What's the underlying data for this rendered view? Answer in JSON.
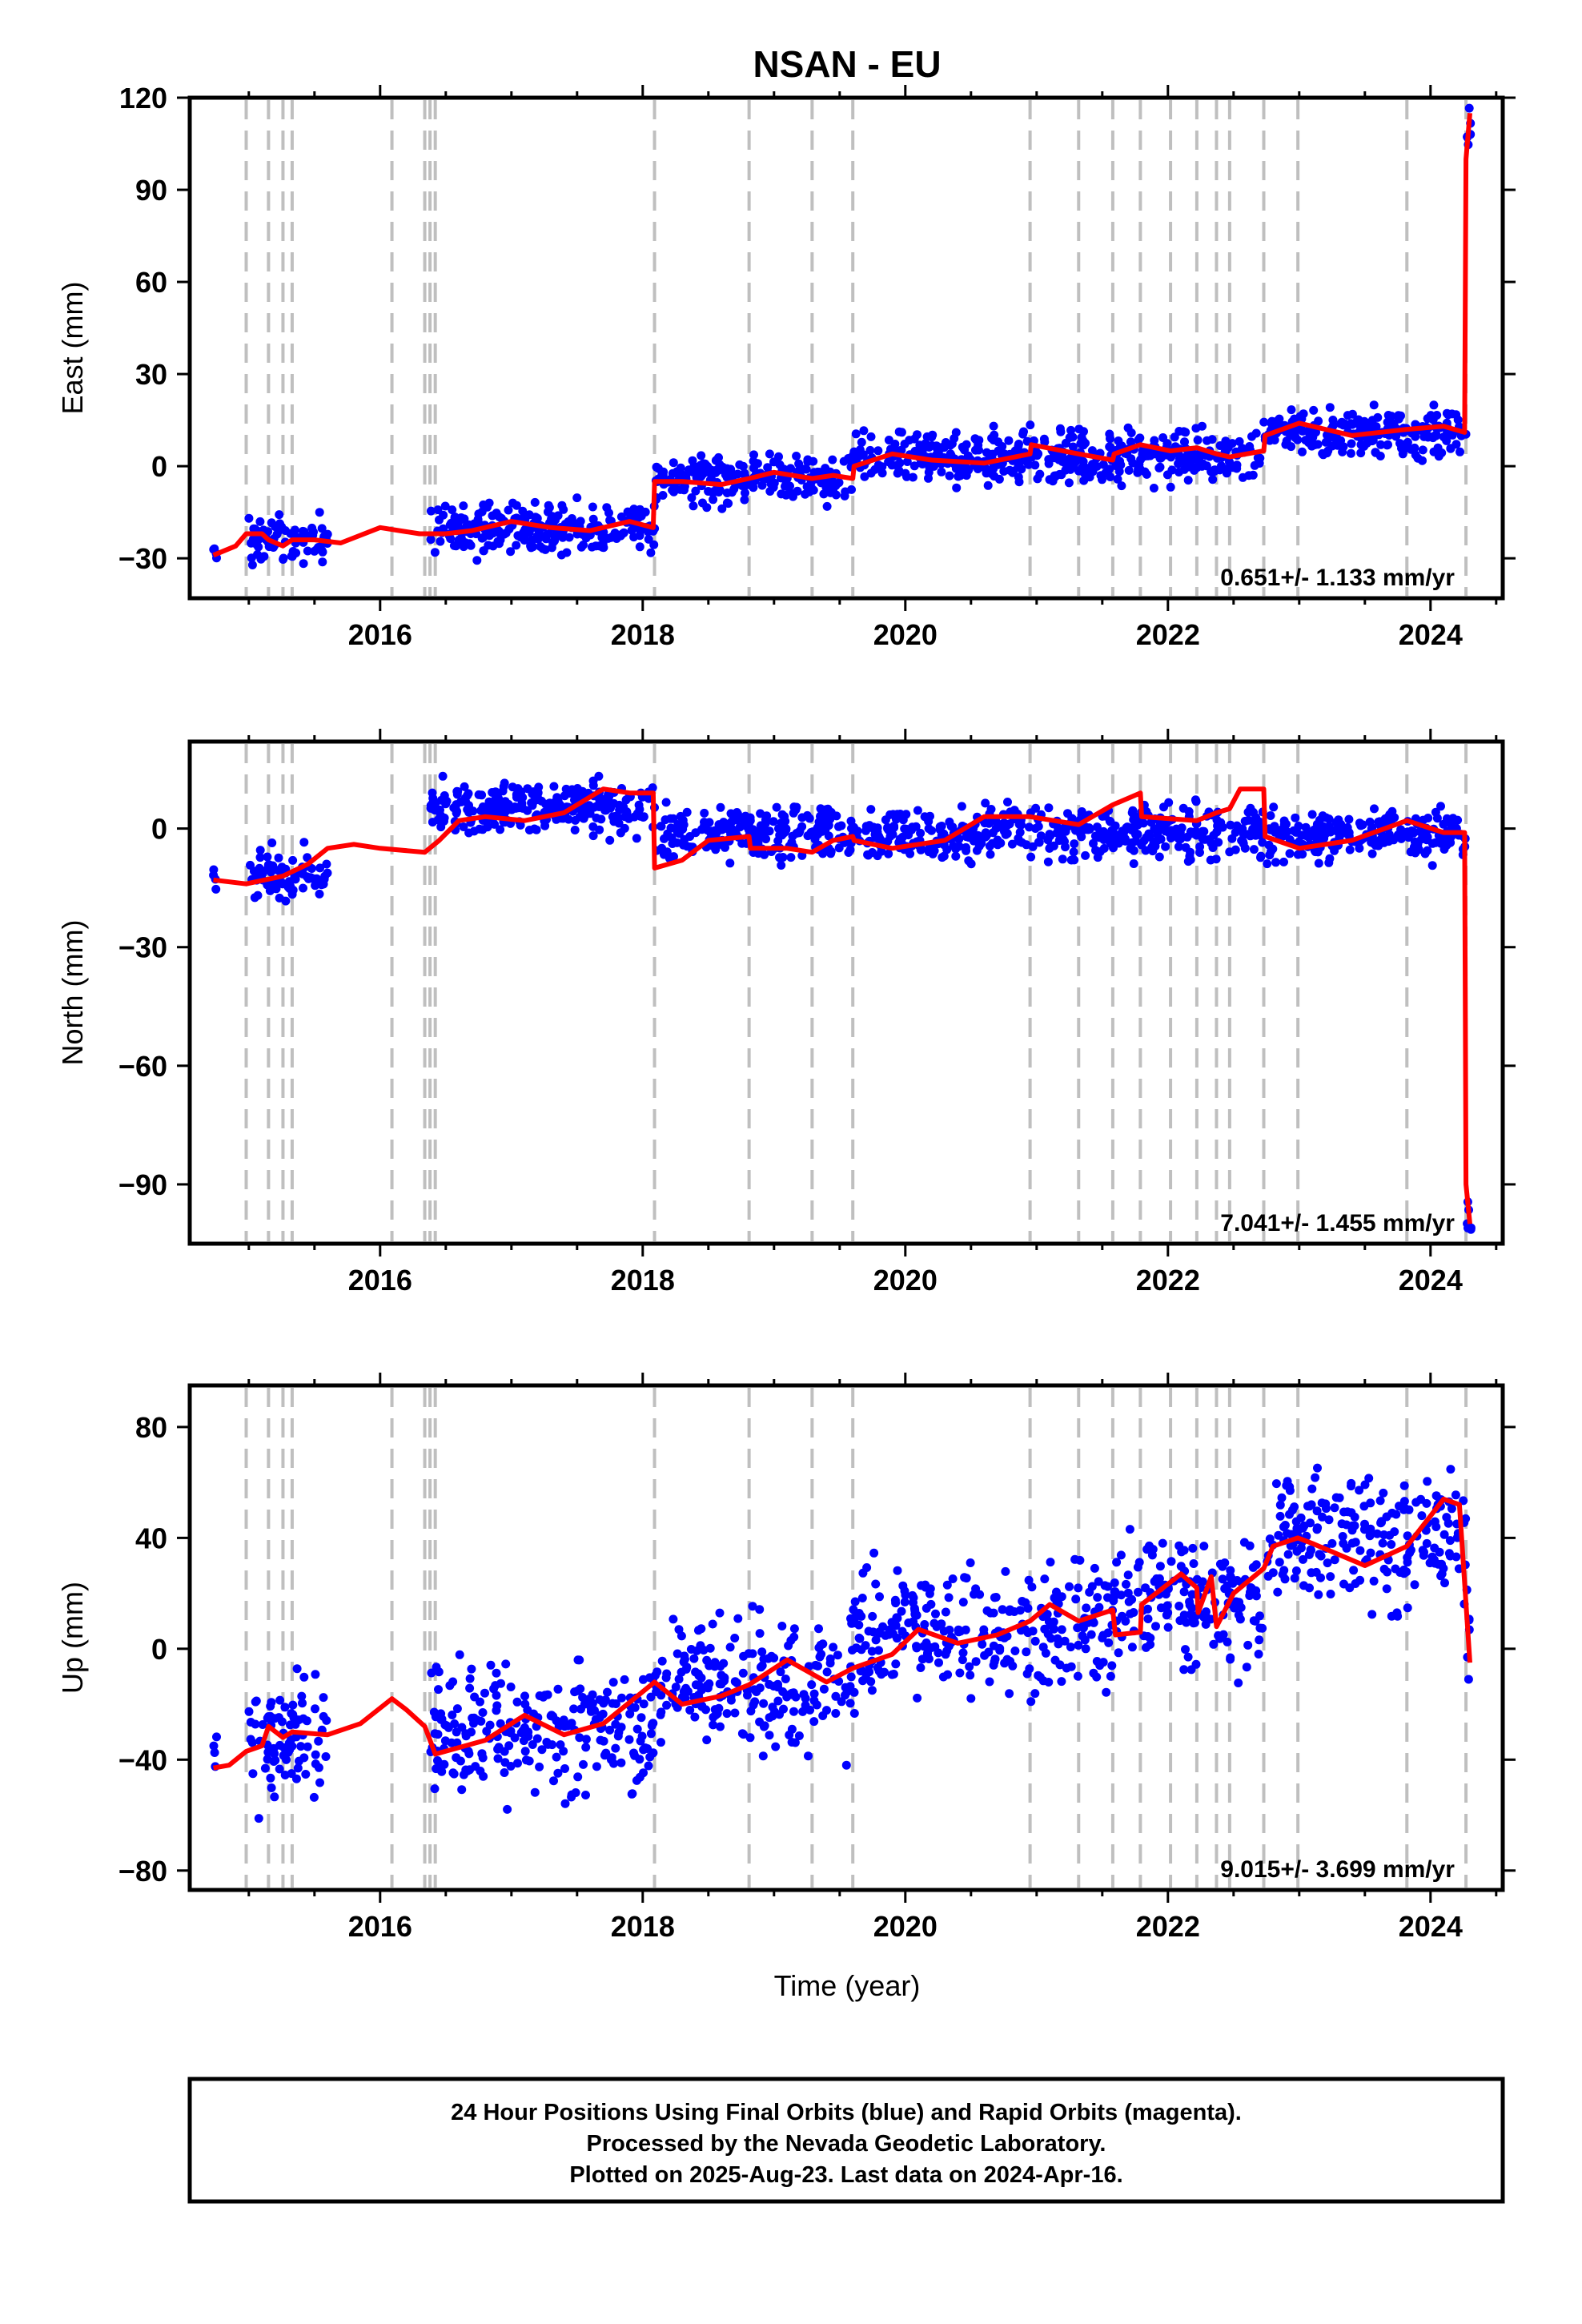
{
  "figure": {
    "title": "NSAN - EU",
    "xlabel": "Time (year)",
    "caption": [
      "24 Hour Positions Using Final Orbits (blue) and Rapid Orbits (magenta).",
      "Processed by the Nevada Geodetic Laboratory.",
      "Plotted on 2025-Aug-23. Last data on 2024-Apr-16."
    ],
    "colors": {
      "final_orbit_points": "#0000ff",
      "model_fit": "#ff0000",
      "step_lines": "#bfbfbf"
    }
  },
  "chart_data": [
    {
      "type": "scatter",
      "component": "East",
      "ylabel": "East (mm)",
      "xlim": [
        2014.55,
        2024.55
      ],
      "ylim": [
        -43,
        120
      ],
      "x_ticks": [
        2016,
        2018,
        2020,
        2022,
        2024
      ],
      "y_ticks": [
        -30,
        0,
        30,
        60,
        90,
        120
      ],
      "rate_label": "0.651+/- 1.133 mm/yr",
      "step_epochs": [
        2014.98,
        2015.15,
        2015.26,
        2015.33,
        2016.09,
        2016.34,
        2016.38,
        2016.42,
        2018.09,
        2018.81,
        2019.29,
        2019.6,
        2020.95,
        2021.32,
        2021.58,
        2021.79,
        2022.02,
        2022.22,
        2022.37,
        2022.47,
        2022.73,
        2022.99,
        2023.82,
        2024.27
      ],
      "fit_line": [
        [
          2014.73,
          -29
        ],
        [
          2014.9,
          -26
        ],
        [
          2014.98,
          -22
        ],
        [
          2015.1,
          -22
        ],
        [
          2015.15,
          -24
        ],
        [
          2015.26,
          -26
        ],
        [
          2015.33,
          -24
        ],
        [
          2015.5,
          -24
        ],
        [
          2015.7,
          -25
        ],
        [
          2016.0,
          -20
        ],
        [
          2016.3,
          -22
        ],
        [
          2016.5,
          -22
        ],
        [
          2016.7,
          -21
        ],
        [
          2017.0,
          -18
        ],
        [
          2017.3,
          -20
        ],
        [
          2017.6,
          -21
        ],
        [
          2017.9,
          -18
        ],
        [
          2018.08,
          -20
        ],
        [
          2018.09,
          -5
        ],
        [
          2018.3,
          -5
        ],
        [
          2018.6,
          -6
        ],
        [
          2018.81,
          -4
        ],
        [
          2019.0,
          -2
        ],
        [
          2019.29,
          -4
        ],
        [
          2019.45,
          -3
        ],
        [
          2019.6,
          -4
        ],
        [
          2019.61,
          0
        ],
        [
          2019.9,
          4
        ],
        [
          2020.2,
          2
        ],
        [
          2020.6,
          1
        ],
        [
          2020.95,
          4
        ],
        [
          2020.96,
          7
        ],
        [
          2021.32,
          4
        ],
        [
          2021.58,
          2
        ],
        [
          2021.59,
          4
        ],
        [
          2021.79,
          7
        ],
        [
          2022.02,
          5
        ],
        [
          2022.22,
          6
        ],
        [
          2022.37,
          4
        ],
        [
          2022.47,
          3
        ],
        [
          2022.73,
          5
        ],
        [
          2022.74,
          10
        ],
        [
          2023.0,
          14
        ],
        [
          2023.4,
          10
        ],
        [
          2023.82,
          12
        ],
        [
          2024.1,
          13
        ],
        [
          2024.26,
          11
        ],
        [
          2024.27,
          100
        ],
        [
          2024.3,
          115
        ]
      ],
      "point_bands": [
        {
          "x": [
            2014.73,
            2014.76
          ],
          "mean": -28,
          "spread": 1.5
        },
        {
          "x": [
            2015.0,
            2015.6
          ],
          "mean": -24,
          "spread": 5
        },
        {
          "x": [
            2016.38,
            2018.09
          ],
          "mean": -20,
          "spread": 5
        },
        {
          "x": [
            2018.09,
            2019.6
          ],
          "mean": -4,
          "spread": 5
        },
        {
          "x": [
            2019.6,
            2022.73
          ],
          "mean": 3,
          "spread": 5
        },
        {
          "x": [
            2022.73,
            2024.27
          ],
          "mean": 11,
          "spread": 5
        },
        {
          "x": [
            2024.27,
            2024.31
          ],
          "mean": 110,
          "spread": 6
        }
      ]
    },
    {
      "type": "scatter",
      "component": "North",
      "ylabel": "North (mm)",
      "xlim": [
        2014.55,
        2024.55
      ],
      "ylim": [
        -105,
        22
      ],
      "x_ticks": [
        2016,
        2018,
        2020,
        2022,
        2024
      ],
      "y_ticks": [
        -90,
        -60,
        -30,
        0
      ],
      "rate_label": "7.041+/- 1.455 mm/yr",
      "step_epochs": [
        2014.98,
        2015.15,
        2015.26,
        2015.33,
        2016.09,
        2016.34,
        2016.38,
        2016.42,
        2018.09,
        2018.81,
        2019.29,
        2019.6,
        2020.95,
        2021.32,
        2021.58,
        2021.79,
        2022.02,
        2022.22,
        2022.37,
        2022.47,
        2022.73,
        2022.99,
        2023.82,
        2024.27
      ],
      "fit_line": [
        [
          2014.73,
          -13
        ],
        [
          2014.98,
          -14
        ],
        [
          2015.26,
          -12
        ],
        [
          2015.45,
          -9
        ],
        [
          2015.6,
          -5
        ],
        [
          2015.8,
          -4
        ],
        [
          2016.0,
          -5
        ],
        [
          2016.34,
          -6
        ],
        [
          2016.45,
          -3
        ],
        [
          2016.6,
          2
        ],
        [
          2016.8,
          3
        ],
        [
          2017.1,
          2
        ],
        [
          2017.4,
          4
        ],
        [
          2017.7,
          10
        ],
        [
          2017.9,
          9
        ],
        [
          2018.08,
          9
        ],
        [
          2018.09,
          -10
        ],
        [
          2018.3,
          -8
        ],
        [
          2018.5,
          -3
        ],
        [
          2018.81,
          -2
        ],
        [
          2018.82,
          -5
        ],
        [
          2019.1,
          -5
        ],
        [
          2019.29,
          -6
        ],
        [
          2019.45,
          -3
        ],
        [
          2019.6,
          -2
        ],
        [
          2019.61,
          -3
        ],
        [
          2019.9,
          -5
        ],
        [
          2020.3,
          -3
        ],
        [
          2020.6,
          3
        ],
        [
          2020.95,
          3
        ],
        [
          2021.32,
          1
        ],
        [
          2021.58,
          6
        ],
        [
          2021.79,
          9
        ],
        [
          2021.8,
          3
        ],
        [
          2022.22,
          2
        ],
        [
          2022.37,
          4
        ],
        [
          2022.47,
          5
        ],
        [
          2022.55,
          10
        ],
        [
          2022.73,
          10
        ],
        [
          2022.74,
          -2
        ],
        [
          2023.0,
          -5
        ],
        [
          2023.4,
          -3
        ],
        [
          2023.82,
          2
        ],
        [
          2024.1,
          -1
        ],
        [
          2024.26,
          -1
        ],
        [
          2024.27,
          -90
        ],
        [
          2024.3,
          -100
        ]
      ],
      "point_bands": [
        {
          "x": [
            2014.73,
            2014.76
          ],
          "mean": -12,
          "spread": 2
        },
        {
          "x": [
            2015.0,
            2015.6
          ],
          "mean": -11,
          "spread": 4
        },
        {
          "x": [
            2016.38,
            2018.09
          ],
          "mean": 5,
          "spread": 4
        },
        {
          "x": [
            2018.09,
            2022.73
          ],
          "mean": -1,
          "spread": 4
        },
        {
          "x": [
            2022.73,
            2024.27
          ],
          "mean": -2,
          "spread": 4
        },
        {
          "x": [
            2024.27,
            2024.31
          ],
          "mean": -98,
          "spread": 4
        }
      ]
    },
    {
      "type": "scatter",
      "component": "Up",
      "ylabel": "Up (mm)",
      "xlim": [
        2014.55,
        2024.55
      ],
      "ylim": [
        -87,
        95
      ],
      "x_ticks": [
        2016,
        2018,
        2020,
        2022,
        2024
      ],
      "y_ticks": [
        -80,
        -40,
        0,
        40,
        80
      ],
      "rate_label": "9.015+/- 3.699 mm/yr",
      "step_epochs": [
        2014.98,
        2015.15,
        2015.26,
        2015.33,
        2016.09,
        2016.34,
        2016.38,
        2016.42,
        2018.09,
        2018.81,
        2019.29,
        2019.6,
        2020.95,
        2021.32,
        2021.58,
        2021.79,
        2022.02,
        2022.22,
        2022.37,
        2022.47,
        2022.73,
        2022.99,
        2023.82,
        2024.27
      ],
      "fit_line": [
        [
          2014.73,
          -43
        ],
        [
          2014.85,
          -42
        ],
        [
          2014.98,
          -37
        ],
        [
          2015.1,
          -35
        ],
        [
          2015.15,
          -28
        ],
        [
          2015.26,
          -32
        ],
        [
          2015.33,
          -30
        ],
        [
          2015.6,
          -31
        ],
        [
          2015.85,
          -27
        ],
        [
          2016.09,
          -18
        ],
        [
          2016.2,
          -22
        ],
        [
          2016.34,
          -28
        ],
        [
          2016.42,
          -38
        ],
        [
          2016.8,
          -33
        ],
        [
          2017.1,
          -24
        ],
        [
          2017.4,
          -31
        ],
        [
          2017.7,
          -27
        ],
        [
          2018.09,
          -12
        ],
        [
          2018.3,
          -20
        ],
        [
          2018.6,
          -17
        ],
        [
          2018.81,
          -13
        ],
        [
          2019.1,
          -4
        ],
        [
          2019.4,
          -12
        ],
        [
          2019.6,
          -7
        ],
        [
          2019.9,
          -2
        ],
        [
          2020.1,
          7
        ],
        [
          2020.4,
          2
        ],
        [
          2020.7,
          5
        ],
        [
          2020.95,
          10
        ],
        [
          2021.1,
          16
        ],
        [
          2021.32,
          10
        ],
        [
          2021.58,
          14
        ],
        [
          2021.6,
          5
        ],
        [
          2021.79,
          6
        ],
        [
          2021.8,
          16
        ],
        [
          2022.1,
          27
        ],
        [
          2022.22,
          22
        ],
        [
          2022.23,
          13
        ],
        [
          2022.33,
          26
        ],
        [
          2022.37,
          8
        ],
        [
          2022.5,
          20
        ],
        [
          2022.73,
          29
        ],
        [
          2022.8,
          37
        ],
        [
          2022.99,
          40
        ],
        [
          2023.1,
          38
        ],
        [
          2023.5,
          30
        ],
        [
          2023.82,
          37
        ],
        [
          2024.1,
          54
        ],
        [
          2024.22,
          52
        ],
        [
          2024.3,
          -5
        ]
      ],
      "point_bands": [
        {
          "x": [
            2014.73,
            2014.76
          ],
          "mean": -40,
          "spread": 5
        },
        {
          "x": [
            2015.0,
            2015.6
          ],
          "mean": -33,
          "spread": 14
        },
        {
          "x": [
            2016.38,
            2018.09
          ],
          "mean": -30,
          "spread": 14
        },
        {
          "x": [
            2018.09,
            2019.6
          ],
          "mean": -12,
          "spread": 14
        },
        {
          "x": [
            2019.6,
            2021.58
          ],
          "mean": 6,
          "spread": 14
        },
        {
          "x": [
            2021.58,
            2022.73
          ],
          "mean": 18,
          "spread": 14
        },
        {
          "x": [
            2022.73,
            2024.27
          ],
          "mean": 40,
          "spread": 14
        },
        {
          "x": [
            2024.27,
            2024.31
          ],
          "mean": 5,
          "spread": 15
        }
      ]
    }
  ]
}
